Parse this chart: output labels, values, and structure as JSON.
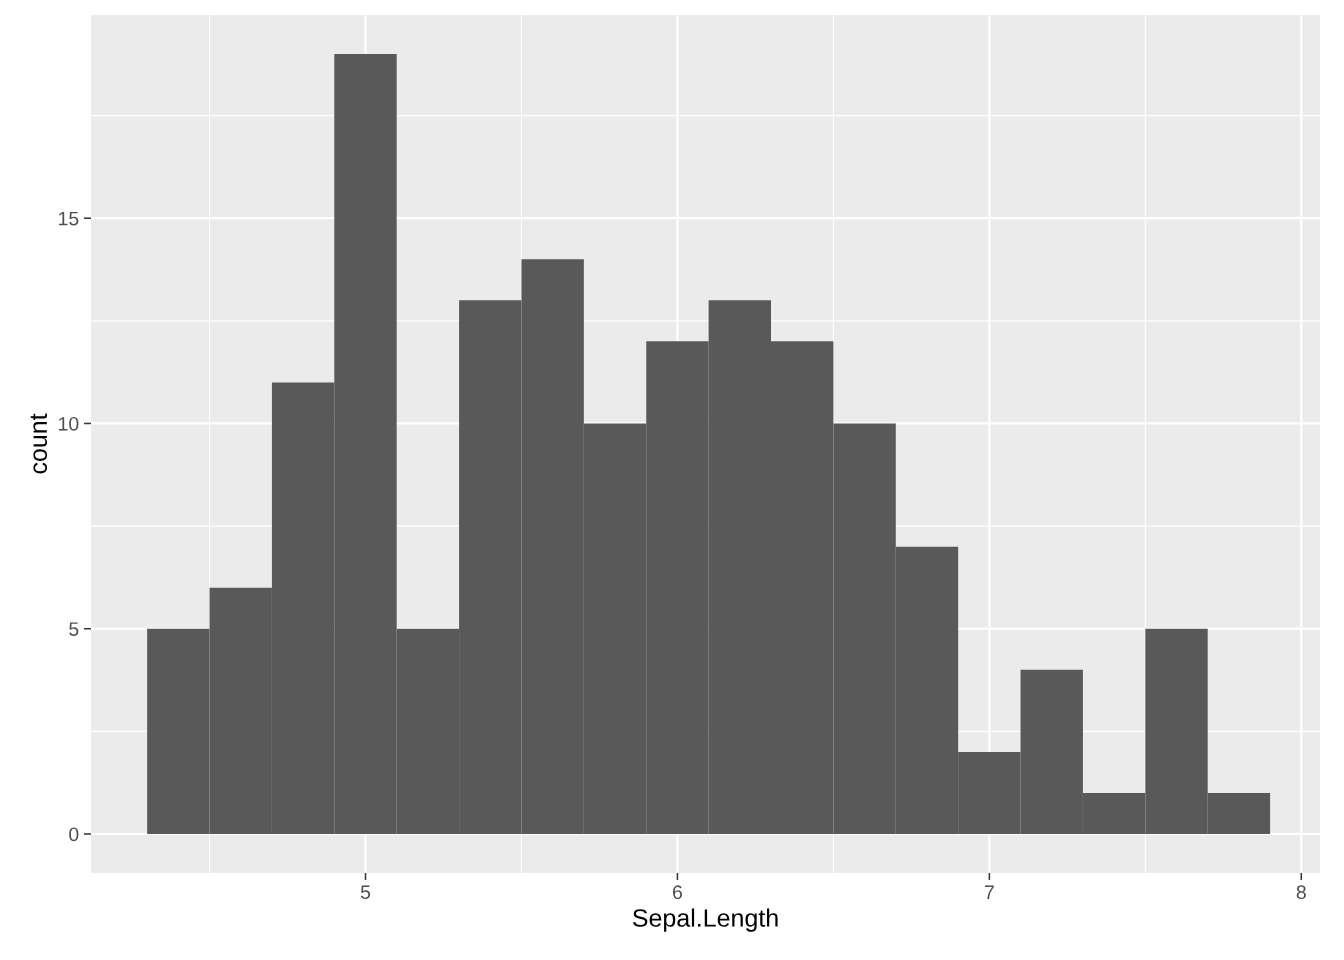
{
  "chart_data": {
    "type": "histogram",
    "xlabel": "Sepal.Length",
    "ylabel": "count",
    "bins": [
      4.3,
      4.5,
      4.7,
      4.9,
      5.1,
      5.3,
      5.5,
      5.7,
      5.9,
      6.1,
      6.3,
      6.5,
      6.7,
      6.9,
      7.1,
      7.3,
      7.5,
      7.7,
      7.9
    ],
    "values": [
      5,
      6,
      11,
      19,
      5,
      13,
      14,
      10,
      12,
      13,
      12,
      10,
      7,
      2,
      4,
      1,
      5,
      1
    ],
    "color": "#595959",
    "xlim": [
      4.12,
      8.06
    ],
    "ylim": [
      -0.95,
      19.95
    ],
    "xticks": [
      {
        "value": 4.5,
        "label": null
      },
      5,
      {
        "value": 5.5,
        "label": null
      },
      6,
      {
        "value": 6.5,
        "label": null
      },
      7,
      {
        "value": 7.5,
        "label": null
      },
      8
    ],
    "yticks": [
      0,
      {
        "value": 2.5,
        "label": null
      },
      5,
      {
        "value": 7.5,
        "label": null
      },
      10,
      {
        "value": 12.5,
        "label": null
      },
      15,
      {
        "value": 17.5,
        "label": null
      }
    ],
    "grid": true
  }
}
